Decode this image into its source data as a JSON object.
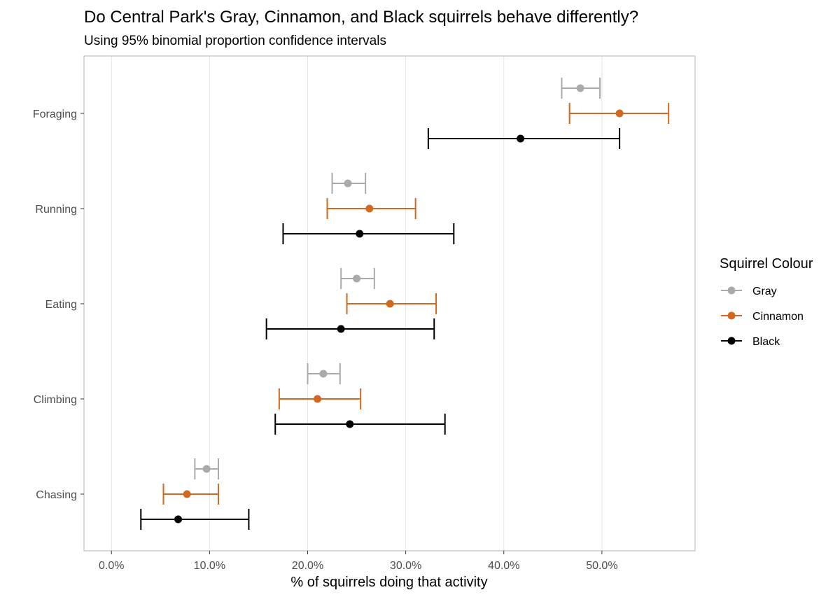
{
  "chart_data": {
    "type": "scatter",
    "title": "Do Central Park's Gray, Cinnamon, and Black squirrels behave differently?",
    "subtitle": "Using 95% binomial proportion confidence intervals",
    "xlabel": "% of squirrels doing that activity",
    "ylabel": "",
    "xlim": [
      -0.028,
      0.595
    ],
    "x_ticks": [
      0,
      0.1,
      0.2,
      0.3,
      0.4,
      0.5
    ],
    "x_tick_labels": [
      "0.0%",
      "10.0%",
      "20.0%",
      "30.0%",
      "40.0%",
      "50.0%"
    ],
    "categories": [
      "Foraging",
      "Running",
      "Eating",
      "Climbing",
      "Chasing"
    ],
    "grid": true,
    "legend": {
      "title": "Squirrel Colour",
      "position": "right",
      "entries": [
        "Gray",
        "Cinnamon",
        "Black"
      ]
    },
    "series": [
      {
        "name": "Gray",
        "color": "#aaaaaa",
        "estimate": [
          0.478,
          0.241,
          0.25,
          0.216,
          0.097
        ],
        "lower": [
          0.459,
          0.225,
          0.234,
          0.2,
          0.085
        ],
        "upper": [
          0.498,
          0.259,
          0.268,
          0.233,
          0.109
        ]
      },
      {
        "name": "Cinnamon",
        "color": "#d2691e",
        "estimate": [
          0.518,
          0.263,
          0.284,
          0.21,
          0.077
        ],
        "lower": [
          0.467,
          0.22,
          0.24,
          0.171,
          0.053
        ],
        "upper": [
          0.568,
          0.31,
          0.331,
          0.254,
          0.109
        ]
      },
      {
        "name": "Black",
        "color": "#000000",
        "estimate": [
          0.417,
          0.253,
          0.234,
          0.243,
          0.068
        ],
        "lower": [
          0.323,
          0.175,
          0.158,
          0.167,
          0.03
        ],
        "upper": [
          0.518,
          0.349,
          0.329,
          0.34,
          0.14
        ]
      }
    ]
  }
}
